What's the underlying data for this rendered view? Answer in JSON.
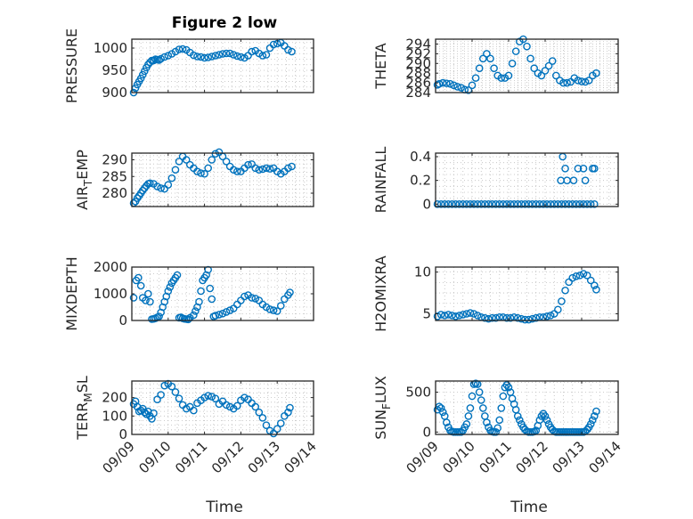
{
  "figure": {
    "title": "Figure 2 low",
    "xlabel": "Time"
  },
  "chart_data": [
    {
      "type": "scatter",
      "title": "Figure 2 low",
      "ylabel": "PRESSURE",
      "ylabel_sub": "",
      "ylim": [
        900,
        1020
      ],
      "yticks": [
        900,
        950,
        1000
      ],
      "ytick_labels": [
        "900",
        "950",
        "1000"
      ],
      "xlim": [
        0,
        5
      ],
      "xticks": [
        0,
        1,
        2,
        3,
        4,
        5
      ],
      "xtick_labels": [
        "",
        "",
        "",
        "",
        "",
        ""
      ],
      "color": "#0072BD",
      "x": [
        0.05,
        0.1,
        0.15,
        0.2,
        0.25,
        0.3,
        0.35,
        0.4,
        0.45,
        0.5,
        0.55,
        0.6,
        0.65,
        0.7,
        0.75,
        0.8,
        0.9,
        1.0,
        1.1,
        1.2,
        1.3,
        1.4,
        1.5,
        1.6,
        1.7,
        1.8,
        1.9,
        2.0,
        2.1,
        2.2,
        2.3,
        2.4,
        2.5,
        2.6,
        2.7,
        2.8,
        2.9,
        3.0,
        3.1,
        3.2,
        3.3,
        3.4,
        3.5,
        3.6,
        3.7,
        3.8,
        3.9,
        4.0,
        4.1,
        4.2,
        4.3,
        4.4
      ],
      "y": [
        900,
        910,
        918,
        925,
        932,
        940,
        948,
        956,
        963,
        968,
        972,
        972,
        975,
        974,
        973,
        976,
        980,
        983,
        987,
        992,
        997,
        998,
        996,
        990,
        984,
        981,
        980,
        978,
        979,
        981,
        983,
        985,
        987,
        988,
        988,
        985,
        982,
        980,
        978,
        983,
        992,
        994,
        988,
        983,
        985,
        1000,
        1008,
        1010,
        1012,
        1005,
        996,
        992
      ]
    },
    {
      "type": "scatter",
      "title": "",
      "ylabel": "THETA",
      "ylabel_sub": "",
      "ylim": [
        284,
        295
      ],
      "yticks": [
        284,
        286,
        288,
        290,
        292,
        294
      ],
      "ytick_labels": [
        "284",
        "286",
        "288",
        "290",
        "292",
        "294"
      ],
      "xlim": [
        0,
        5
      ],
      "xticks": [
        0,
        1,
        2,
        3,
        4,
        5
      ],
      "xtick_labels": [
        "",
        "",
        "",
        "",
        "",
        ""
      ],
      "color": "#0072BD",
      "x": [
        0.05,
        0.1,
        0.2,
        0.3,
        0.4,
        0.5,
        0.6,
        0.7,
        0.8,
        0.9,
        1.0,
        1.1,
        1.2,
        1.3,
        1.4,
        1.5,
        1.6,
        1.7,
        1.8,
        1.9,
        2.0,
        2.1,
        2.2,
        2.3,
        2.4,
        2.5,
        2.6,
        2.7,
        2.8,
        2.9,
        3.0,
        3.1,
        3.2,
        3.3,
        3.4,
        3.5,
        3.6,
        3.7,
        3.8,
        3.9,
        4.0,
        4.1,
        4.2,
        4.3,
        4.4
      ],
      "y": [
        285.6,
        285.8,
        286.0,
        285.9,
        285.8,
        285.5,
        285.2,
        285.0,
        284.6,
        284.5,
        285.5,
        287.0,
        289.0,
        291.0,
        292.0,
        291.0,
        289.0,
        287.5,
        287.0,
        287.0,
        287.5,
        290.0,
        292.5,
        294.5,
        295.0,
        293.5,
        291.0,
        289.0,
        288.0,
        287.5,
        288.5,
        289.5,
        290.5,
        287.5,
        286.5,
        286.0,
        286.0,
        286.2,
        287.0,
        286.5,
        286.3,
        286.2,
        286.5,
        287.5,
        288.0
      ]
    },
    {
      "type": "scatter",
      "title": "",
      "ylabel": "AIR",
      "ylabel_sub": "TEMP",
      "ylim": [
        276,
        292
      ],
      "yticks": [
        280,
        285,
        290
      ],
      "ytick_labels": [
        "280",
        "285",
        "290"
      ],
      "xlim": [
        0,
        5
      ],
      "xticks": [
        0,
        1,
        2,
        3,
        4,
        5
      ],
      "xtick_labels": [
        "",
        "",
        "",
        "",
        "",
        ""
      ],
      "color": "#0072BD",
      "x": [
        0.05,
        0.1,
        0.15,
        0.2,
        0.25,
        0.3,
        0.35,
        0.4,
        0.45,
        0.5,
        0.6,
        0.7,
        0.8,
        0.9,
        1.0,
        1.1,
        1.2,
        1.3,
        1.4,
        1.5,
        1.6,
        1.7,
        1.8,
        1.9,
        2.0,
        2.1,
        2.2,
        2.3,
        2.4,
        2.5,
        2.6,
        2.7,
        2.8,
        2.9,
        3.0,
        3.1,
        3.2,
        3.3,
        3.4,
        3.5,
        3.6,
        3.7,
        3.8,
        3.9,
        4.0,
        4.1,
        4.2,
        4.3,
        4.4
      ],
      "y": [
        277,
        277.5,
        278.5,
        279.2,
        280,
        280.8,
        281.5,
        282.2,
        282.8,
        283,
        282.8,
        282,
        281.5,
        281.3,
        282.5,
        284.5,
        287,
        289.5,
        291,
        290,
        288.5,
        287.5,
        286.5,
        286,
        285.8,
        287.5,
        290,
        291.8,
        292.3,
        291,
        289.5,
        288,
        287,
        286.5,
        286.5,
        287.5,
        288.5,
        288.7,
        287.5,
        287,
        287.2,
        287.5,
        287.3,
        287.5,
        286.5,
        285.8,
        286.5,
        287.5,
        288
      ]
    },
    {
      "type": "scatter",
      "title": "",
      "ylabel": "RAINFALL",
      "ylabel_sub": "",
      "ylim": [
        -0.02,
        0.43
      ],
      "yticks": [
        0,
        0.2,
        0.4
      ],
      "ytick_labels": [
        "0",
        "0.2",
        "0.4"
      ],
      "xlim": [
        0,
        5
      ],
      "xticks": [
        0,
        1,
        2,
        3,
        4,
        5
      ],
      "xtick_labels": [
        "",
        "",
        "",
        "",
        "",
        ""
      ],
      "color": "#0072BD",
      "x": [
        0.05,
        0.15,
        0.25,
        0.35,
        0.45,
        0.55,
        0.65,
        0.75,
        0.85,
        0.95,
        1.05,
        1.15,
        1.25,
        1.35,
        1.45,
        1.55,
        1.65,
        1.75,
        1.85,
        1.95,
        2.05,
        2.15,
        2.25,
        2.35,
        2.45,
        2.55,
        2.65,
        2.75,
        2.85,
        2.95,
        3.05,
        3.15,
        3.25,
        3.35,
        3.45,
        3.55,
        3.65,
        3.75,
        3.85,
        3.95,
        4.05,
        4.15,
        4.25,
        4.35,
        3.43,
        3.48,
        3.55,
        3.6,
        3.78,
        3.9,
        4.05,
        4.1,
        4.3,
        4.35
      ],
      "y": [
        0,
        0,
        0,
        0,
        0,
        0,
        0,
        0,
        0,
        0,
        0,
        0,
        0,
        0,
        0,
        0,
        0,
        0,
        0,
        0,
        0,
        0,
        0,
        0,
        0,
        0,
        0,
        0,
        0,
        0,
        0,
        0,
        0,
        0,
        0,
        0,
        0,
        0,
        0,
        0,
        0,
        0,
        0,
        0,
        0.2,
        0.4,
        0.3,
        0.2,
        0.2,
        0.3,
        0.3,
        0.2,
        0.3,
        0.3
      ]
    },
    {
      "type": "scatter",
      "title": "",
      "ylabel": "MIXDEPTH",
      "ylabel_sub": "",
      "ylim": [
        0,
        2000
      ],
      "yticks": [
        0,
        1000,
        2000
      ],
      "ytick_labels": [
        "0",
        "1000",
        "2000"
      ],
      "xlim": [
        0,
        5
      ],
      "xticks": [
        0,
        1,
        2,
        3,
        4,
        5
      ],
      "xtick_labels": [
        "",
        "",
        "",
        "",
        "",
        ""
      ],
      "color": "#0072BD",
      "x": [
        0.05,
        0.12,
        0.18,
        0.25,
        0.3,
        0.38,
        0.45,
        0.5,
        0.55,
        0.6,
        0.65,
        0.7,
        0.75,
        0.8,
        0.85,
        0.9,
        0.95,
        1.0,
        1.05,
        1.1,
        1.15,
        1.2,
        1.25,
        1.3,
        1.35,
        1.4,
        1.45,
        1.5,
        1.55,
        1.6,
        1.7,
        1.75,
        1.8,
        1.85,
        1.9,
        1.95,
        2.0,
        2.05,
        2.1,
        2.15,
        2.2,
        2.25,
        2.3,
        2.4,
        2.5,
        2.6,
        2.7,
        2.8,
        2.9,
        3.0,
        3.1,
        3.2,
        3.3,
        3.4,
        3.5,
        3.6,
        3.7,
        3.8,
        3.9,
        4.0,
        4.1,
        4.2,
        4.3,
        4.35
      ],
      "y": [
        850,
        1500,
        1600,
        1300,
        850,
        750,
        1000,
        700,
        50,
        60,
        80,
        120,
        150,
        300,
        500,
        700,
        900,
        1100,
        1250,
        1400,
        1500,
        1600,
        1700,
        100,
        120,
        80,
        60,
        50,
        40,
        100,
        200,
        350,
        500,
        700,
        1100,
        1500,
        1600,
        1700,
        1900,
        1200,
        800,
        150,
        180,
        220,
        260,
        320,
        380,
        450,
        600,
        750,
        900,
        950,
        850,
        820,
        750,
        600,
        500,
        420,
        380,
        350,
        550,
        800,
        950,
        1050
      ]
    },
    {
      "type": "scatter",
      "title": "",
      "ylabel": "H2OMIXRA",
      "ylabel_sub": "",
      "ylim": [
        4.2,
        10.6
      ],
      "yticks": [
        5,
        10
      ],
      "ytick_labels": [
        "5",
        "10"
      ],
      "xlim": [
        0,
        5
      ],
      "xticks": [
        0,
        1,
        2,
        3,
        4,
        5
      ],
      "xtick_labels": [
        "",
        "",
        "",
        "",
        "",
        ""
      ],
      "color": "#0072BD",
      "x": [
        0.05,
        0.15,
        0.25,
        0.35,
        0.45,
        0.55,
        0.65,
        0.75,
        0.85,
        0.95,
        1.05,
        1.15,
        1.25,
        1.35,
        1.45,
        1.55,
        1.65,
        1.75,
        1.85,
        1.95,
        2.05,
        2.15,
        2.25,
        2.35,
        2.45,
        2.55,
        2.65,
        2.75,
        2.85,
        2.95,
        3.05,
        3.15,
        3.25,
        3.35,
        3.45,
        3.55,
        3.65,
        3.75,
        3.85,
        3.95,
        4.05,
        4.15,
        4.25,
        4.35,
        4.4
      ],
      "y": [
        4.7,
        4.9,
        4.8,
        4.9,
        4.8,
        4.7,
        4.8,
        4.9,
        5.0,
        5.1,
        5.0,
        4.8,
        4.6,
        4.5,
        4.4,
        4.5,
        4.5,
        4.6,
        4.6,
        4.5,
        4.5,
        4.6,
        4.5,
        4.4,
        4.3,
        4.3,
        4.4,
        4.5,
        4.6,
        4.6,
        4.7,
        4.8,
        5.0,
        5.5,
        6.5,
        7.8,
        8.8,
        9.3,
        9.5,
        9.6,
        9.8,
        9.6,
        9.0,
        8.4,
        7.9
      ]
    },
    {
      "type": "scatter",
      "title": "",
      "ylabel": "TERR",
      "ylabel_sub": "MSL",
      "ylim": [
        0,
        290
      ],
      "yticks": [
        0,
        100,
        200
      ],
      "ytick_labels": [
        "0",
        "100",
        "200"
      ],
      "xlim": [
        0,
        5
      ],
      "xticks": [
        0,
        1,
        2,
        3,
        4,
        5
      ],
      "xtick_labels": [
        "09/09",
        "09/10",
        "09/11",
        "09/12",
        "09/13",
        "09/14"
      ],
      "color": "#0072BD",
      "x": [
        0.05,
        0.1,
        0.15,
        0.2,
        0.25,
        0.3,
        0.35,
        0.4,
        0.45,
        0.5,
        0.55,
        0.6,
        0.7,
        0.8,
        0.9,
        1.0,
        1.1,
        1.2,
        1.3,
        1.4,
        1.5,
        1.6,
        1.7,
        1.8,
        1.9,
        2.0,
        2.1,
        2.2,
        2.3,
        2.4,
        2.5,
        2.6,
        2.7,
        2.8,
        2.9,
        3.0,
        3.1,
        3.2,
        3.3,
        3.4,
        3.5,
        3.6,
        3.7,
        3.8,
        3.9,
        4.0,
        4.1,
        4.2,
        4.3,
        4.35
      ],
      "y": [
        165,
        180,
        150,
        125,
        130,
        140,
        120,
        110,
        125,
        100,
        85,
        115,
        190,
        215,
        265,
        275,
        260,
        230,
        195,
        160,
        140,
        150,
        130,
        170,
        185,
        200,
        210,
        205,
        195,
        165,
        180,
        160,
        150,
        140,
        155,
        185,
        200,
        190,
        170,
        150,
        120,
        90,
        50,
        20,
        5,
        30,
        60,
        100,
        120,
        145
      ]
    },
    {
      "type": "scatter",
      "title": "",
      "ylabel": "SUN",
      "ylabel_sub": "FLUX",
      "ylim": [
        -30,
        640
      ],
      "yticks": [
        0,
        500
      ],
      "ytick_labels": [
        "0",
        "500"
      ],
      "xlim": [
        0,
        5
      ],
      "xticks": [
        0,
        1,
        2,
        3,
        4,
        5
      ],
      "xtick_labels": [
        "09/09",
        "09/10",
        "09/11",
        "09/12",
        "09/13",
        "09/14"
      ],
      "color": "#0072BD",
      "x": [
        0.05,
        0.1,
        0.15,
        0.2,
        0.25,
        0.3,
        0.35,
        0.4,
        0.45,
        0.5,
        0.55,
        0.6,
        0.65,
        0.7,
        0.75,
        0.8,
        0.85,
        0.9,
        0.95,
        1.0,
        1.05,
        1.1,
        1.15,
        1.2,
        1.25,
        1.3,
        1.35,
        1.4,
        1.45,
        1.5,
        1.55,
        1.6,
        1.65,
        1.7,
        1.75,
        1.8,
        1.85,
        1.9,
        1.95,
        2.0,
        2.05,
        2.1,
        2.15,
        2.2,
        2.25,
        2.3,
        2.35,
        2.4,
        2.45,
        2.5,
        2.55,
        2.6,
        2.65,
        2.7,
        2.75,
        2.8,
        2.85,
        2.9,
        2.95,
        3.0,
        3.05,
        3.1,
        3.15,
        3.2,
        3.25,
        3.3,
        3.35,
        3.4,
        3.45,
        3.5,
        3.55,
        3.6,
        3.65,
        3.7,
        3.75,
        3.8,
        3.85,
        3.9,
        3.95,
        4.0,
        4.05,
        4.1,
        4.15,
        4.2,
        4.25,
        4.3,
        4.35,
        4.4
      ],
      "y": [
        280,
        320,
        300,
        250,
        200,
        120,
        60,
        20,
        5,
        0,
        0,
        0,
        0,
        0,
        20,
        60,
        100,
        200,
        300,
        450,
        600,
        610,
        600,
        500,
        400,
        300,
        200,
        120,
        60,
        20,
        5,
        0,
        0,
        50,
        150,
        300,
        450,
        560,
        590,
        560,
        500,
        420,
        350,
        280,
        200,
        150,
        100,
        60,
        30,
        10,
        0,
        0,
        0,
        5,
        20,
        80,
        150,
        200,
        230,
        200,
        150,
        100,
        60,
        30,
        10,
        0,
        0,
        0,
        0,
        0,
        0,
        0,
        0,
        0,
        0,
        0,
        0,
        0,
        0,
        0,
        0,
        10,
        30,
        60,
        100,
        150,
        200,
        260
      ]
    }
  ]
}
